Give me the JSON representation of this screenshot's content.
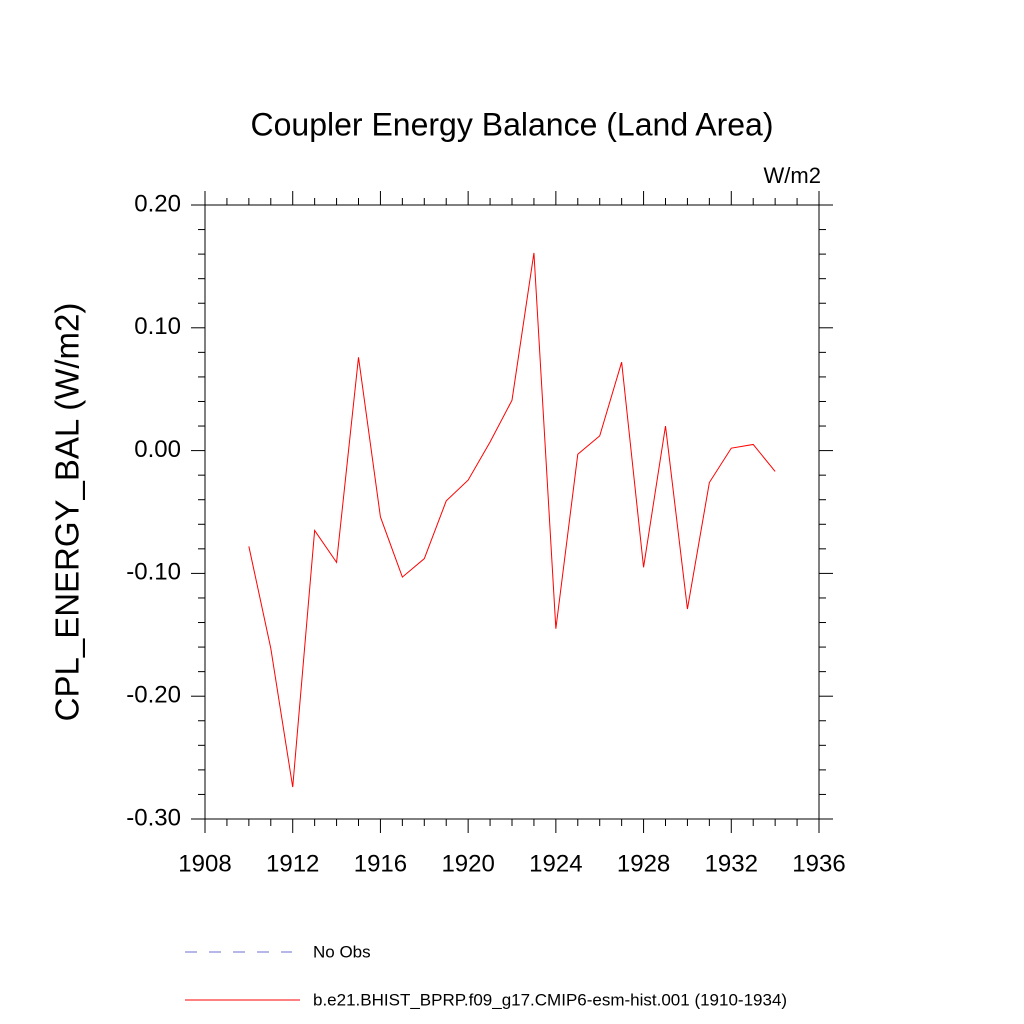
{
  "chart_data": {
    "type": "line",
    "title": "Coupler Energy Balance (Land Area)",
    "units": "W/m2",
    "y_label": "CPL_ENERGY_BAL  (W/m2)",
    "x": [
      1910,
      1911,
      1912,
      1913,
      1914,
      1915,
      1916,
      1917,
      1918,
      1919,
      1920,
      1921,
      1922,
      1923,
      1924,
      1925,
      1926,
      1927,
      1928,
      1929,
      1930,
      1931,
      1932,
      1933,
      1934
    ],
    "series": [
      {
        "name": "b.e21.BHIST_BPRP.f09_g17.CMIP6-esm-hist.001 (1910-1934)",
        "color": "#ff0000",
        "values": [
          -0.078,
          -0.161,
          -0.274,
          -0.065,
          -0.091,
          0.076,
          -0.054,
          -0.103,
          -0.088,
          -0.041,
          -0.024,
          0.007,
          0.041,
          0.161,
          -0.145,
          -0.003,
          0.012,
          0.072,
          -0.095,
          0.02,
          -0.129,
          -0.026,
          0.002,
          0.005,
          -0.017
        ]
      }
    ],
    "reference": {
      "name": "No Obs",
      "color": "#6e6ed2",
      "dash": "12,12"
    },
    "xlim": [
      1908,
      1936
    ],
    "xticks": [
      1908,
      1912,
      1916,
      1920,
      1924,
      1928,
      1932,
      1936
    ],
    "xminorticks": [
      1909,
      1910,
      1911,
      1913,
      1914,
      1915,
      1917,
      1918,
      1919,
      1921,
      1922,
      1923,
      1925,
      1926,
      1927,
      1929,
      1930,
      1931,
      1933,
      1934,
      1935
    ],
    "ylim": [
      -0.3,
      0.2
    ],
    "yticks": [
      {
        "value": 0.2,
        "label": "0.20"
      },
      {
        "value": 0.1,
        "label": "0.10"
      },
      {
        "value": 0,
        "label": "0.00"
      },
      {
        "value": -0.1,
        "label": "-0.10"
      },
      {
        "value": -0.2,
        "label": "-0.20"
      },
      {
        "value": -0.3,
        "label": "-0.30"
      }
    ],
    "yminorticks": [
      0.18,
      0.16,
      0.14,
      0.12,
      0.08,
      0.06,
      0.04,
      0.02,
      -0.02,
      -0.04,
      -0.06,
      -0.08,
      -0.12,
      -0.14,
      -0.16,
      -0.18,
      -0.22,
      -0.24,
      -0.26,
      -0.28
    ],
    "mirror_ticks": true
  }
}
